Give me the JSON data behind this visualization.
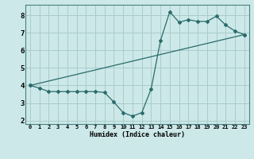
{
  "xlabel": "Humidex (Indice chaleur)",
  "bg_color": "#cce8e8",
  "grid_color": "#aacccc",
  "line_color": "#2a6b6b",
  "line1_x": [
    0,
    1,
    2,
    3,
    4,
    5,
    6,
    7,
    8,
    9,
    10,
    11,
    12,
    13,
    14,
    15,
    16,
    17,
    18,
    19,
    20,
    21,
    22,
    23
  ],
  "line1_y": [
    4.0,
    3.85,
    3.65,
    3.65,
    3.65,
    3.65,
    3.65,
    3.65,
    3.6,
    3.05,
    2.45,
    2.25,
    2.45,
    3.8,
    6.55,
    8.2,
    7.6,
    7.75,
    7.65,
    7.65,
    7.95,
    7.45,
    7.1,
    6.9
  ],
  "line2_x": [
    0,
    23
  ],
  "line2_y": [
    4.0,
    6.9
  ],
  "xlim": [
    -0.5,
    23.5
  ],
  "ylim": [
    1.8,
    8.6
  ],
  "xticks": [
    0,
    1,
    2,
    3,
    4,
    5,
    6,
    7,
    8,
    9,
    10,
    11,
    12,
    13,
    14,
    15,
    16,
    17,
    18,
    19,
    20,
    21,
    22,
    23
  ],
  "yticks": [
    2,
    3,
    4,
    5,
    6,
    7,
    8
  ],
  "xlabel_fontsize": 6.0,
  "ytick_fontsize": 6.5,
  "xtick_fontsize": 5.0
}
